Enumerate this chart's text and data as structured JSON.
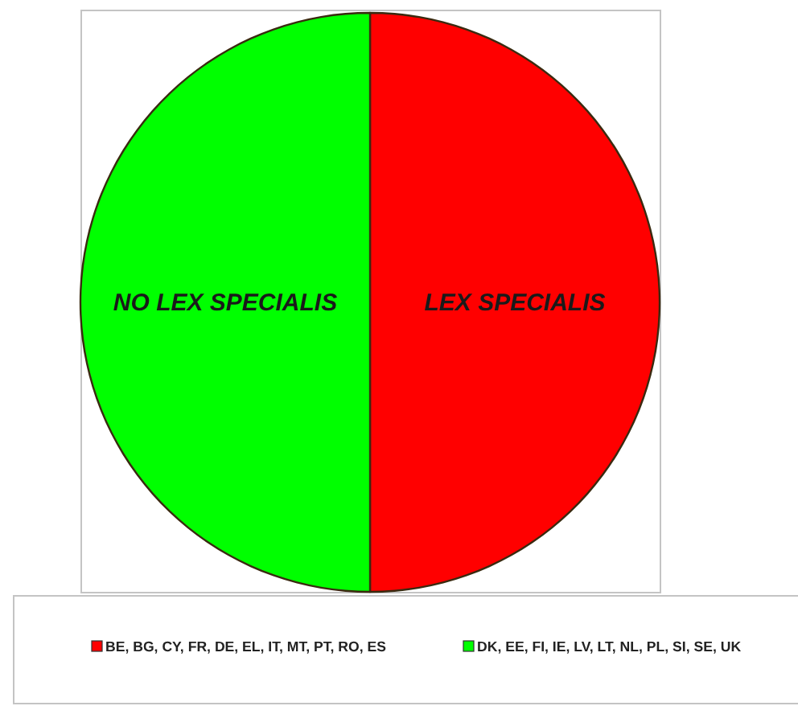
{
  "chart_data": {
    "type": "pie",
    "categories": [
      "BE, BG, CY, FR, DE, EL, IT, MT, PT, RO, ES",
      "DK, EE, FI, IE, LV, LT, NL, PL, SI, SE, UK"
    ],
    "values": [
      50,
      50
    ],
    "colors": [
      "#ff0000",
      "#00ff00"
    ],
    "legend": "bottom",
    "annotations": [
      "LEX SPECIALIS",
      "NO LEX SPECIALIS"
    ]
  }
}
